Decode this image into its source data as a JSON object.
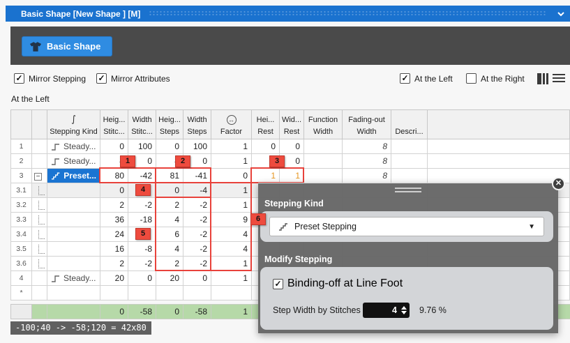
{
  "window": {
    "title": "Basic Shape [New Shape ] [M]"
  },
  "toolbar": {
    "basic_shape_label": "Basic Shape"
  },
  "options": {
    "mirror_stepping": {
      "label": "Mirror Stepping",
      "checked": true
    },
    "mirror_attributes": {
      "label": "Mirror Attributes",
      "checked": true
    },
    "at_the_left": {
      "label": "At the Left",
      "checked": true
    },
    "at_the_right": {
      "label": "At the Right",
      "checked": false
    }
  },
  "section_label": "At the Left",
  "table": {
    "columns": [
      {
        "id": "rownum",
        "line1": "",
        "line2": ""
      },
      {
        "id": "expand",
        "line1": "",
        "line2": ""
      },
      {
        "id": "kind",
        "line1": "int-icon",
        "line2": "Stepping Kind"
      },
      {
        "id": "heig_stitc",
        "line1": "Heig...",
        "line2": "Stitc..."
      },
      {
        "id": "width_stitc",
        "line1": "Width",
        "line2": "Stitc..."
      },
      {
        "id": "heig_steps",
        "line1": "Heig...",
        "line2": "Steps"
      },
      {
        "id": "width_steps",
        "line1": "Width",
        "line2": "Steps"
      },
      {
        "id": "factor",
        "line1": "factor-icon",
        "line2": "Factor"
      },
      {
        "id": "hei_rest",
        "line1": "Hei...",
        "line2": "Rest"
      },
      {
        "id": "wid_rest",
        "line1": "Wid...",
        "line2": "Rest"
      },
      {
        "id": "function_width",
        "line1": "Function",
        "line2": "Width"
      },
      {
        "id": "fading_width",
        "line1": "Fading-out",
        "line2": "Width"
      },
      {
        "id": "descri",
        "line1": "",
        "line2": "Descri..."
      },
      {
        "id": "filler",
        "line1": "",
        "line2": ""
      }
    ],
    "rows": [
      {
        "num": "1",
        "kind": "Steady...",
        "kind_icon": "step",
        "cells": {
          "heig_stitc": "0",
          "width_stitc": "100",
          "heig_steps": "0",
          "width_steps": "100",
          "factor": "1",
          "hei_rest": "0",
          "wid_rest": "0",
          "fading_width": "8"
        }
      },
      {
        "num": "2",
        "kind": "Steady...",
        "kind_icon": "step",
        "cells": {
          "heig_stitc": "4",
          "width_stitc": "0",
          "heig_steps": "4",
          "width_steps": "0",
          "factor": "1",
          "hei_rest": "0",
          "wid_rest": "0",
          "fading_width": "8"
        }
      },
      {
        "num": "3",
        "kind": "Preset...",
        "kind_icon": "stairs",
        "selected": true,
        "expandable": true,
        "rest_orange": true,
        "cells": {
          "heig_stitc": "80",
          "width_stitc": "-42",
          "heig_steps": "81",
          "width_steps": "-41",
          "factor": "0",
          "hei_rest": "1",
          "wid_rest": "1",
          "fading_width": "8"
        }
      },
      {
        "num": "3.1",
        "sub": true,
        "gray": true,
        "cells": {
          "heig_stitc": "0",
          "width_stitc": "",
          "heig_steps": "0",
          "width_steps": "-4",
          "factor": "1"
        }
      },
      {
        "num": "3.2",
        "sub": true,
        "cells": {
          "heig_stitc": "2",
          "width_stitc": "-2",
          "heig_steps": "2",
          "width_steps": "-2",
          "factor": "1"
        }
      },
      {
        "num": "3.3",
        "sub": true,
        "cells": {
          "heig_stitc": "36",
          "width_stitc": "-18",
          "heig_steps": "4",
          "width_steps": "-2",
          "factor": "9"
        }
      },
      {
        "num": "3.4",
        "sub": true,
        "cells": {
          "heig_stitc": "24",
          "width_stitc": "",
          "heig_steps": "6",
          "width_steps": "-2",
          "factor": "4"
        }
      },
      {
        "num": "3.5",
        "sub": true,
        "cells": {
          "heig_stitc": "16",
          "width_stitc": "-8",
          "heig_steps": "4",
          "width_steps": "-2",
          "factor": "4"
        }
      },
      {
        "num": "3.6",
        "sub": true,
        "cells": {
          "heig_stitc": "2",
          "width_stitc": "-2",
          "heig_steps": "2",
          "width_steps": "-2",
          "factor": "1"
        }
      },
      {
        "num": "4",
        "kind": "Steady...",
        "kind_icon": "step",
        "cells": {
          "heig_stitc": "20",
          "width_stitc": "0",
          "heig_steps": "20",
          "width_steps": "0",
          "factor": "1"
        }
      },
      {
        "num": "*",
        "cells": {}
      }
    ],
    "summary": {
      "heig_stitc": "0",
      "width_stitc": "-58",
      "heig_steps": "0",
      "width_steps": "-58",
      "factor": "1"
    }
  },
  "badges": [
    "1",
    "2",
    "3",
    "4",
    "5",
    "6"
  ],
  "popup": {
    "stepping_kind_label": "Stepping Kind",
    "dropdown_value": "Preset Stepping",
    "modify_label": "Modify Stepping",
    "binding_off": {
      "label": "Binding-off at Line Foot",
      "checked": true
    },
    "step_width_label": "Step Width by Stitches",
    "step_width_value": "4",
    "step_width_percent": "9.76 %"
  },
  "status_tooltip": "-100;40 -> -58;120 = 42x80",
  "colors": {
    "accent_blue": "#1a72cf",
    "selection_blue": "#1a74d2",
    "alert_red": "#e8423b",
    "badge_red": "#ee4b3e",
    "orange_value": "#e6951e",
    "summary_green": "#b6d9a8"
  }
}
